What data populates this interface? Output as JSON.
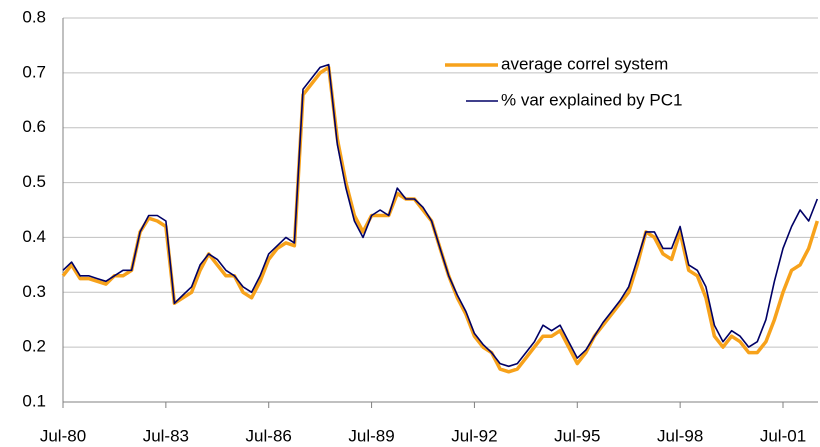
{
  "chart_data": {
    "type": "line",
    "categories": [
      "Jul-80",
      null,
      null,
      null,
      null,
      null,
      null,
      null,
      null,
      null,
      null,
      null,
      "Jul-83",
      null,
      null,
      null,
      null,
      null,
      null,
      null,
      null,
      null,
      null,
      null,
      "Jul-86",
      null,
      null,
      null,
      null,
      null,
      null,
      null,
      null,
      null,
      null,
      null,
      "Jul-89",
      null,
      null,
      null,
      null,
      null,
      null,
      null,
      null,
      null,
      null,
      null,
      "Jul-92",
      null,
      null,
      null,
      null,
      null,
      null,
      null,
      null,
      null,
      null,
      null,
      "Jul-95",
      null,
      null,
      null,
      null,
      null,
      null,
      null,
      null,
      null,
      null,
      null,
      "Jul-98",
      null,
      null,
      null,
      null,
      null,
      null,
      null,
      null,
      null,
      null,
      null,
      "Jul-01",
      null,
      null,
      null,
      null
    ],
    "series": [
      {
        "name": "average correl system",
        "color": "#f7a21b",
        "values": [
          0.33,
          0.35,
          0.325,
          0.325,
          0.32,
          0.315,
          0.33,
          0.33,
          0.34,
          0.41,
          0.435,
          0.43,
          0.42,
          0.28,
          0.29,
          0.3,
          0.34,
          0.37,
          0.35,
          0.33,
          0.33,
          0.3,
          0.29,
          0.32,
          0.36,
          0.38,
          0.39,
          0.385,
          0.66,
          0.68,
          0.7,
          0.71,
          0.58,
          0.5,
          0.44,
          0.41,
          0.44,
          0.44,
          0.44,
          0.48,
          0.47,
          0.47,
          0.45,
          0.43,
          0.38,
          0.33,
          0.29,
          0.26,
          0.22,
          0.2,
          0.19,
          0.16,
          0.155,
          0.16,
          0.18,
          0.2,
          0.22,
          0.22,
          0.23,
          0.2,
          0.17,
          0.19,
          0.22,
          0.24,
          0.26,
          0.28,
          0.3,
          0.35,
          0.41,
          0.4,
          0.37,
          0.36,
          0.41,
          0.34,
          0.33,
          0.29,
          0.22,
          0.2,
          0.22,
          0.21,
          0.19,
          0.19,
          0.21,
          0.25,
          0.3,
          0.34,
          0.35,
          0.38,
          0.43
        ]
      },
      {
        "name": "% var explained by PC1",
        "color": "#000066",
        "values": [
          0.34,
          0.355,
          0.33,
          0.33,
          0.325,
          0.32,
          0.33,
          0.34,
          0.34,
          0.41,
          0.44,
          0.44,
          0.43,
          0.28,
          0.295,
          0.31,
          0.35,
          0.37,
          0.36,
          0.34,
          0.33,
          0.31,
          0.3,
          0.33,
          0.37,
          0.385,
          0.4,
          0.39,
          0.67,
          0.69,
          0.71,
          0.715,
          0.57,
          0.49,
          0.43,
          0.4,
          0.44,
          0.45,
          0.44,
          0.49,
          0.47,
          0.47,
          0.455,
          0.43,
          0.38,
          0.33,
          0.295,
          0.265,
          0.225,
          0.205,
          0.19,
          0.17,
          0.165,
          0.17,
          0.19,
          0.21,
          0.24,
          0.23,
          0.24,
          0.21,
          0.18,
          0.195,
          0.22,
          0.245,
          0.265,
          0.285,
          0.31,
          0.36,
          0.41,
          0.41,
          0.38,
          0.38,
          0.42,
          0.35,
          0.34,
          0.31,
          0.24,
          0.21,
          0.23,
          0.22,
          0.2,
          0.21,
          0.25,
          0.32,
          0.38,
          0.42,
          0.45,
          0.43,
          0.47
        ]
      }
    ],
    "ylim": [
      0.1,
      0.8
    ],
    "yticks": [
      0.1,
      0.2,
      0.3,
      0.4,
      0.5,
      0.6,
      0.7,
      0.8
    ],
    "grid": true,
    "legend": "top-right"
  }
}
